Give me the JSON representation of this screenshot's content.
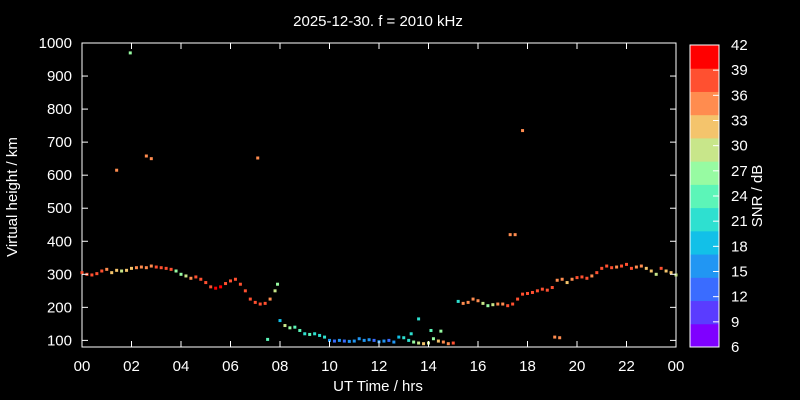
{
  "chart_data": {
    "type": "scatter",
    "title": "2025-12-30. f = 2010 kHz",
    "xlabel": "UT Time / hrs",
    "ylabel": "Virtual height / km",
    "xlim": [
      0,
      24
    ],
    "ylim": [
      80,
      1000
    ],
    "x_ticks": [
      "00",
      "02",
      "04",
      "06",
      "08",
      "10",
      "12",
      "14",
      "16",
      "18",
      "20",
      "22",
      "00"
    ],
    "y_ticks": [
      "100",
      "200",
      "300",
      "400",
      "500",
      "600",
      "700",
      "800",
      "900",
      "1000"
    ],
    "grid": false,
    "colorbar": {
      "label": "SNR / dB",
      "ticks": [
        "6",
        "9",
        "12",
        "15",
        "18",
        "21",
        "24",
        "27",
        "30",
        "33",
        "36",
        "39",
        "42"
      ],
      "range": [
        6,
        42
      ],
      "colors": [
        "#7f00ff",
        "#5a3cff",
        "#3a6cff",
        "#2196f3",
        "#12c0e8",
        "#2ee0d0",
        "#5cf5b8",
        "#97fba2",
        "#c8e68a",
        "#f4c46c",
        "#ff8c4f",
        "#ff5030",
        "#ff0000"
      ]
    },
    "series": [
      {
        "points": [
          [
            0.0,
            305,
            37
          ],
          [
            0.2,
            300,
            37
          ],
          [
            0.4,
            298,
            37
          ],
          [
            0.6,
            302,
            38
          ],
          [
            0.8,
            310,
            37
          ],
          [
            1.0,
            315,
            36
          ],
          [
            1.2,
            305,
            33
          ],
          [
            1.4,
            312,
            32
          ],
          [
            1.6,
            310,
            30
          ],
          [
            1.8,
            312,
            31
          ],
          [
            2.0,
            318,
            33
          ],
          [
            2.2,
            320,
            34
          ],
          [
            2.4,
            322,
            35
          ],
          [
            2.6,
            320,
            36
          ],
          [
            2.8,
            325,
            36
          ],
          [
            3.0,
            322,
            37
          ],
          [
            3.2,
            320,
            37
          ],
          [
            3.4,
            318,
            37
          ],
          [
            3.6,
            315,
            37
          ],
          [
            3.8,
            310,
            26
          ],
          [
            4.0,
            300,
            28
          ],
          [
            4.2,
            295,
            30
          ],
          [
            4.4,
            288,
            36
          ],
          [
            4.6,
            292,
            37
          ],
          [
            4.8,
            285,
            37
          ],
          [
            5.0,
            275,
            38
          ],
          [
            5.2,
            262,
            39
          ],
          [
            5.4,
            258,
            40
          ],
          [
            5.6,
            262,
            40
          ],
          [
            5.8,
            272,
            39
          ],
          [
            6.0,
            280,
            39
          ],
          [
            6.2,
            285,
            39
          ],
          [
            6.4,
            270,
            38
          ],
          [
            6.6,
            250,
            37
          ],
          [
            6.8,
            225,
            38
          ],
          [
            7.0,
            215,
            38
          ],
          [
            7.2,
            210,
            38
          ],
          [
            7.4,
            212,
            37
          ],
          [
            7.6,
            225,
            36
          ],
          [
            7.8,
            250,
            30
          ],
          [
            7.9,
            270,
            28
          ],
          [
            8.0,
            160,
            18
          ],
          [
            8.2,
            145,
            30
          ],
          [
            8.4,
            138,
            27
          ],
          [
            8.6,
            140,
            24
          ],
          [
            8.8,
            130,
            24
          ],
          [
            9.0,
            120,
            22
          ],
          [
            9.2,
            118,
            24
          ],
          [
            9.4,
            120,
            20
          ],
          [
            9.6,
            115,
            22
          ],
          [
            9.8,
            110,
            21
          ],
          [
            10.0,
            100,
            15
          ],
          [
            10.2,
            98,
            14
          ],
          [
            10.4,
            100,
            16
          ],
          [
            10.6,
            98,
            14
          ],
          [
            10.8,
            97,
            15
          ],
          [
            11.0,
            98,
            17
          ],
          [
            11.2,
            105,
            16
          ],
          [
            11.4,
            100,
            15
          ],
          [
            11.6,
            102,
            16
          ],
          [
            11.8,
            100,
            14
          ],
          [
            12.0,
            96,
            15
          ],
          [
            12.2,
            98,
            17
          ],
          [
            12.4,
            100,
            14
          ],
          [
            12.6,
            95,
            15
          ],
          [
            12.8,
            110,
            18
          ],
          [
            13.0,
            108,
            20
          ],
          [
            13.2,
            100,
            21
          ],
          [
            13.4,
            95,
            27
          ],
          [
            13.6,
            92,
            30
          ],
          [
            13.8,
            90,
            33
          ],
          [
            14.0,
            92,
            30
          ],
          [
            14.2,
            105,
            27
          ],
          [
            14.4,
            98,
            33
          ],
          [
            14.6,
            95,
            36
          ],
          [
            14.8,
            90,
            35
          ],
          [
            15.0,
            92,
            37
          ],
          [
            15.2,
            218,
            20
          ],
          [
            15.4,
            212,
            35
          ],
          [
            15.6,
            215,
            34
          ],
          [
            15.8,
            225,
            36
          ],
          [
            16.0,
            220,
            34
          ],
          [
            16.2,
            212,
            30
          ],
          [
            16.4,
            205,
            26
          ],
          [
            16.6,
            208,
            30
          ],
          [
            16.8,
            210,
            35
          ],
          [
            17.0,
            210,
            36
          ],
          [
            17.2,
            205,
            37
          ],
          [
            17.4,
            210,
            37
          ],
          [
            17.6,
            225,
            38
          ],
          [
            17.8,
            240,
            37
          ],
          [
            18.0,
            242,
            37
          ],
          [
            18.2,
            245,
            38
          ],
          [
            18.4,
            250,
            39
          ],
          [
            18.6,
            255,
            39
          ],
          [
            18.8,
            252,
            38
          ],
          [
            19.0,
            260,
            37
          ],
          [
            19.2,
            282,
            35
          ],
          [
            19.4,
            285,
            36
          ],
          [
            19.6,
            275,
            31
          ],
          [
            19.8,
            285,
            34
          ],
          [
            20.0,
            290,
            37
          ],
          [
            20.2,
            292,
            38
          ],
          [
            20.4,
            288,
            37
          ],
          [
            20.6,
            295,
            36
          ],
          [
            20.8,
            305,
            37
          ],
          [
            21.0,
            318,
            38
          ],
          [
            21.2,
            325,
            39
          ],
          [
            21.4,
            320,
            37
          ],
          [
            21.6,
            322,
            36
          ],
          [
            21.8,
            325,
            38
          ],
          [
            22.0,
            330,
            38
          ],
          [
            22.2,
            318,
            37
          ],
          [
            22.4,
            322,
            36
          ],
          [
            22.6,
            325,
            34
          ],
          [
            22.8,
            318,
            33
          ],
          [
            23.0,
            310,
            32
          ],
          [
            23.2,
            300,
            30
          ],
          [
            23.4,
            318,
            37
          ],
          [
            23.6,
            310,
            31
          ],
          [
            23.8,
            305,
            33
          ],
          [
            24.0,
            298,
            30
          ],
          [
            1.4,
            615,
            36
          ],
          [
            2.6,
            658,
            34
          ],
          [
            2.8,
            650,
            35
          ],
          [
            7.1,
            652,
            35
          ],
          [
            1.95,
            970,
            28
          ],
          [
            17.3,
            420,
            34
          ],
          [
            17.5,
            420,
            35
          ],
          [
            17.8,
            735,
            34
          ],
          [
            19.1,
            110,
            35
          ],
          [
            19.3,
            108,
            36
          ],
          [
            7.5,
            103,
            25
          ],
          [
            14.1,
            130,
            24
          ],
          [
            14.5,
            128,
            27
          ],
          [
            13.6,
            165,
            22
          ],
          [
            13.3,
            120,
            21
          ]
        ]
      }
    ]
  }
}
